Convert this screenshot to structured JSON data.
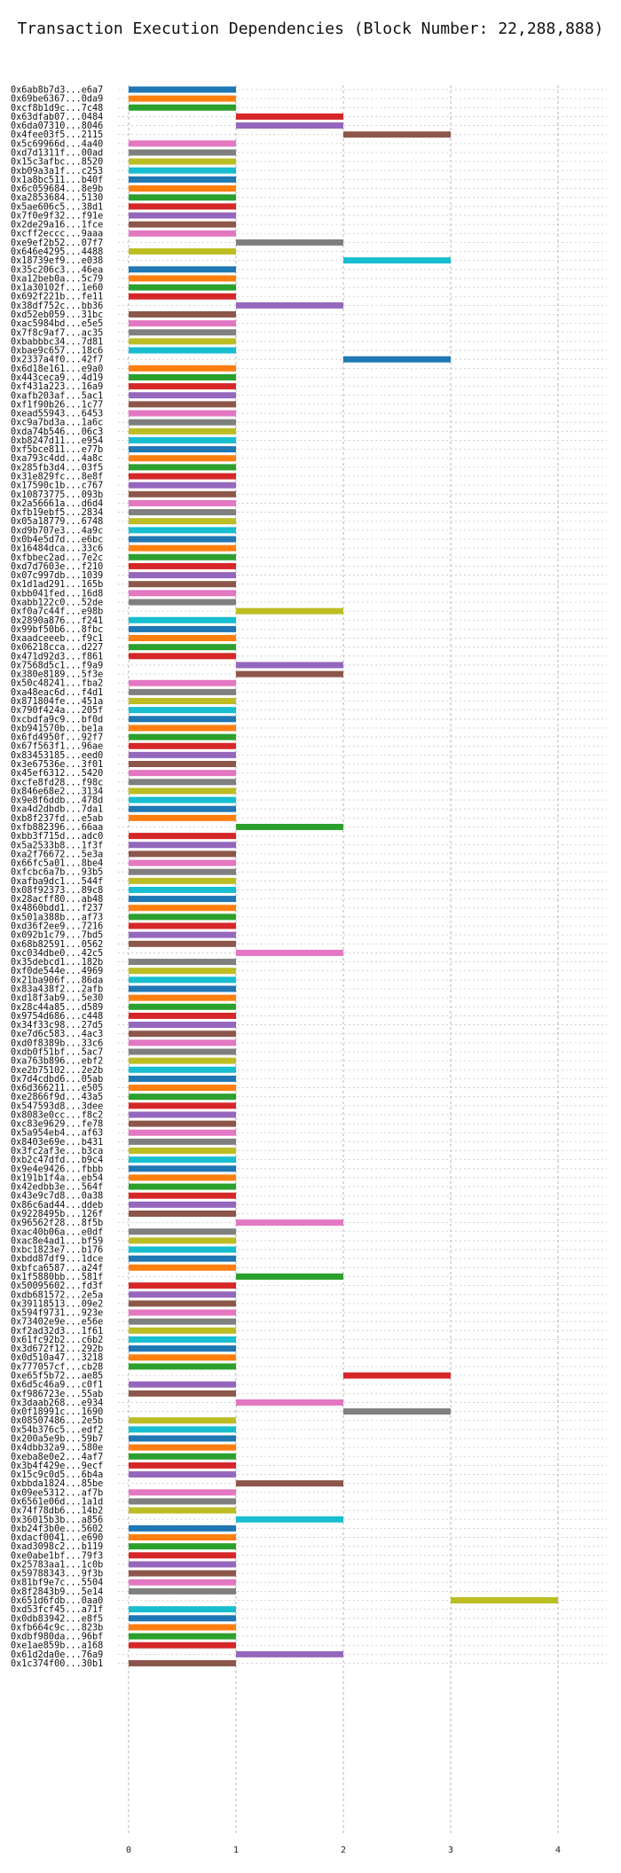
{
  "chart_data": {
    "type": "bar",
    "orientation": "horizontal",
    "title": "Transaction Execution Dependencies (Block Number: 22,288,888)",
    "xlabel": "",
    "ylabel": "",
    "xlim": [
      0,
      4.4
    ],
    "xticks": [
      "0",
      "1",
      "2",
      "3",
      "4"
    ],
    "grid": true,
    "palette": [
      "#1f77b4",
      "#ff7f0e",
      "#2ca02c",
      "#d62728",
      "#9467bd",
      "#8c564b",
      "#e377c2",
      "#7f7f7f",
      "#bcbd22",
      "#17becf"
    ],
    "bars": [
      {
        "tx": "0x6ab8b7d3...e6a7",
        "start": 0,
        "end": 1
      },
      {
        "tx": "0x69be6367...0da9",
        "start": 0,
        "end": 1
      },
      {
        "tx": "0xcf8b1d9c...7c48",
        "start": 0,
        "end": 1
      },
      {
        "tx": "0x63dfab07...0484",
        "start": 1,
        "end": 2
      },
      {
        "tx": "0x6da07310...8046",
        "start": 1,
        "end": 2
      },
      {
        "tx": "0x4fee03f5...2115",
        "start": 2,
        "end": 3
      },
      {
        "tx": "0x5c69966d...4a40",
        "start": 0,
        "end": 1
      },
      {
        "tx": "0xd7d1311f...00ad",
        "start": 0,
        "end": 1
      },
      {
        "tx": "0x15c3afbc...8520",
        "start": 0,
        "end": 1
      },
      {
        "tx": "0xb09a3a1f...c253",
        "start": 0,
        "end": 1
      },
      {
        "tx": "0x1a8bc511...b40f",
        "start": 0,
        "end": 1
      },
      {
        "tx": "0x6c059684...8e9b",
        "start": 0,
        "end": 1
      },
      {
        "tx": "0xa2853684...5130",
        "start": 0,
        "end": 1
      },
      {
        "tx": "0x5ae606c5...38d1",
        "start": 0,
        "end": 1
      },
      {
        "tx": "0x7f0e9f32...f91e",
        "start": 0,
        "end": 1
      },
      {
        "tx": "0x2de29a16...1fce",
        "start": 0,
        "end": 1
      },
      {
        "tx": "0xcff2eccc...9aaa",
        "start": 0,
        "end": 1
      },
      {
        "tx": "0xe9ef2b52...07f7",
        "start": 1,
        "end": 2
      },
      {
        "tx": "0x646e4295...4488",
        "start": 0,
        "end": 1
      },
      {
        "tx": "0x18739ef9...e038",
        "start": 2,
        "end": 3
      },
      {
        "tx": "0x35c206c3...46ea",
        "start": 0,
        "end": 1
      },
      {
        "tx": "0xa12beb0a...5c79",
        "start": 0,
        "end": 1
      },
      {
        "tx": "0x1a30102f...1e60",
        "start": 0,
        "end": 1
      },
      {
        "tx": "0x692f221b...fe11",
        "start": 0,
        "end": 1
      },
      {
        "tx": "0x38df752c...bb36",
        "start": 1,
        "end": 2
      },
      {
        "tx": "0xd52eb059...31bc",
        "start": 0,
        "end": 1
      },
      {
        "tx": "0xac5984bd...e5e5",
        "start": 0,
        "end": 1
      },
      {
        "tx": "0x7f8c9af7...ac35",
        "start": 0,
        "end": 1
      },
      {
        "tx": "0xbabbbc34...7d81",
        "start": 0,
        "end": 1
      },
      {
        "tx": "0xbae9c657...18c6",
        "start": 0,
        "end": 1
      },
      {
        "tx": "0x2337a4f0...42f7",
        "start": 2,
        "end": 3
      },
      {
        "tx": "0x6d18e161...e9a0",
        "start": 0,
        "end": 1
      },
      {
        "tx": "0x443ceca9...4d19",
        "start": 0,
        "end": 1
      },
      {
        "tx": "0xf431a223...16a9",
        "start": 0,
        "end": 1
      },
      {
        "tx": "0xafb203af...5ac1",
        "start": 0,
        "end": 1
      },
      {
        "tx": "0xf1f90b26...1c77",
        "start": 0,
        "end": 1
      },
      {
        "tx": "0xead55943...6453",
        "start": 0,
        "end": 1
      },
      {
        "tx": "0xc9a7bd3a...1a6c",
        "start": 0,
        "end": 1
      },
      {
        "tx": "0xda74b546...06c3",
        "start": 0,
        "end": 1
      },
      {
        "tx": "0xb8247d11...e954",
        "start": 0,
        "end": 1
      },
      {
        "tx": "0xf5bce811...e77b",
        "start": 0,
        "end": 1
      },
      {
        "tx": "0xa793c4dd...4a8c",
        "start": 0,
        "end": 1
      },
      {
        "tx": "0x285fb3d4...03f5",
        "start": 0,
        "end": 1
      },
      {
        "tx": "0x31e829fc...8e8f",
        "start": 0,
        "end": 1
      },
      {
        "tx": "0x17590c1b...c767",
        "start": 0,
        "end": 1
      },
      {
        "tx": "0x10873775...093b",
        "start": 0,
        "end": 1
      },
      {
        "tx": "0x2a56661a...d6d4",
        "start": 0,
        "end": 1
      },
      {
        "tx": "0xfb19ebf5...2834",
        "start": 0,
        "end": 1
      },
      {
        "tx": "0x05a18779...6748",
        "start": 0,
        "end": 1
      },
      {
        "tx": "0xd9b707e3...4a9c",
        "start": 0,
        "end": 1
      },
      {
        "tx": "0x0b4e5d7d...e6bc",
        "start": 0,
        "end": 1
      },
      {
        "tx": "0x16484dca...33c6",
        "start": 0,
        "end": 1
      },
      {
        "tx": "0xfbbec2ad...7e2c",
        "start": 0,
        "end": 1
      },
      {
        "tx": "0xd7d7603e...f210",
        "start": 0,
        "end": 1
      },
      {
        "tx": "0x07c997db...1039",
        "start": 0,
        "end": 1
      },
      {
        "tx": "0x1d1ad291...165b",
        "start": 0,
        "end": 1
      },
      {
        "tx": "0xbb041fed...16d8",
        "start": 0,
        "end": 1
      },
      {
        "tx": "0xabb122c0...52de",
        "start": 0,
        "end": 1
      },
      {
        "tx": "0xf0a7c44f...e98b",
        "start": 1,
        "end": 2
      },
      {
        "tx": "0x2890a876...f241",
        "start": 0,
        "end": 1
      },
      {
        "tx": "0x99bf50b6...8fbc",
        "start": 0,
        "end": 1
      },
      {
        "tx": "0xaadceeeb...f9c1",
        "start": 0,
        "end": 1
      },
      {
        "tx": "0x06218cca...d227",
        "start": 0,
        "end": 1
      },
      {
        "tx": "0x471d92d3...f861",
        "start": 0,
        "end": 1
      },
      {
        "tx": "0x7568d5c1...f9a9",
        "start": 1,
        "end": 2
      },
      {
        "tx": "0x380e8189...5f3e",
        "start": 1,
        "end": 2
      },
      {
        "tx": "0x50c48241...fba2",
        "start": 0,
        "end": 1
      },
      {
        "tx": "0xa48eac6d...f4d1",
        "start": 0,
        "end": 1
      },
      {
        "tx": "0x871804fe...451a",
        "start": 0,
        "end": 1
      },
      {
        "tx": "0x790f424a...205f",
        "start": 0,
        "end": 1
      },
      {
        "tx": "0xcbdfa9c9...bf0d",
        "start": 0,
        "end": 1
      },
      {
        "tx": "0xb941570b...be1a",
        "start": 0,
        "end": 1
      },
      {
        "tx": "0x6fd4950f...92f7",
        "start": 0,
        "end": 1
      },
      {
        "tx": "0x67f563f1...96ae",
        "start": 0,
        "end": 1
      },
      {
        "tx": "0x83453185...eed0",
        "start": 0,
        "end": 1
      },
      {
        "tx": "0x3e67536e...3f01",
        "start": 0,
        "end": 1
      },
      {
        "tx": "0x45ef6312...5420",
        "start": 0,
        "end": 1
      },
      {
        "tx": "0xcfe8fd28...f98c",
        "start": 0,
        "end": 1
      },
      {
        "tx": "0x846e68e2...3134",
        "start": 0,
        "end": 1
      },
      {
        "tx": "0x9e8f6ddb...478d",
        "start": 0,
        "end": 1
      },
      {
        "tx": "0xa4d2dbdb...7da1",
        "start": 0,
        "end": 1
      },
      {
        "tx": "0xb8f237fd...e5ab",
        "start": 0,
        "end": 1
      },
      {
        "tx": "0xfb882396...66aa",
        "start": 1,
        "end": 2
      },
      {
        "tx": "0xbb3f715d...adc0",
        "start": 0,
        "end": 1
      },
      {
        "tx": "0x5a2533b8...1f3f",
        "start": 0,
        "end": 1
      },
      {
        "tx": "0xa2f76672...5e3a",
        "start": 0,
        "end": 1
      },
      {
        "tx": "0x66fc5a01...8be4",
        "start": 0,
        "end": 1
      },
      {
        "tx": "0xfcbc6a7b...93b5",
        "start": 0,
        "end": 1
      },
      {
        "tx": "0xafba9dc1...544f",
        "start": 0,
        "end": 1
      },
      {
        "tx": "0x08f92373...89c8",
        "start": 0,
        "end": 1
      },
      {
        "tx": "0x28acff80...ab48",
        "start": 0,
        "end": 1
      },
      {
        "tx": "0x4860bdd1...f237",
        "start": 0,
        "end": 1
      },
      {
        "tx": "0x501a388b...af73",
        "start": 0,
        "end": 1
      },
      {
        "tx": "0xd36f2ee9...7216",
        "start": 0,
        "end": 1
      },
      {
        "tx": "0x092b1c79...7bd5",
        "start": 0,
        "end": 1
      },
      {
        "tx": "0x68b82591...0562",
        "start": 0,
        "end": 1
      },
      {
        "tx": "0xc034dbe0...42c5",
        "start": 1,
        "end": 2
      },
      {
        "tx": "0x35debcd1...182b",
        "start": 0,
        "end": 1
      },
      {
        "tx": "0xf0de544e...4969",
        "start": 0,
        "end": 1
      },
      {
        "tx": "0x21ba906f...86da",
        "start": 0,
        "end": 1
      },
      {
        "tx": "0x83a438f2...2afb",
        "start": 0,
        "end": 1
      },
      {
        "tx": "0xd18f3ab9...5e30",
        "start": 0,
        "end": 1
      },
      {
        "tx": "0x28c44a85...d589",
        "start": 0,
        "end": 1
      },
      {
        "tx": "0x9754d686...c448",
        "start": 0,
        "end": 1
      },
      {
        "tx": "0x34f33c98...27d5",
        "start": 0,
        "end": 1
      },
      {
        "tx": "0xe7d6c583...4ac3",
        "start": 0,
        "end": 1
      },
      {
        "tx": "0xd0f8389b...33c6",
        "start": 0,
        "end": 1
      },
      {
        "tx": "0xdb0f51bf...5ac7",
        "start": 0,
        "end": 1
      },
      {
        "tx": "0xa763b896...ebf2",
        "start": 0,
        "end": 1
      },
      {
        "tx": "0xe2b75102...2e2b",
        "start": 0,
        "end": 1
      },
      {
        "tx": "0x7d4cdbd6...05ab",
        "start": 0,
        "end": 1
      },
      {
        "tx": "0x6d366211...e505",
        "start": 0,
        "end": 1
      },
      {
        "tx": "0xe2866f9d...43a5",
        "start": 0,
        "end": 1
      },
      {
        "tx": "0x547593d8...3dee",
        "start": 0,
        "end": 1
      },
      {
        "tx": "0x8083e0cc...f8c2",
        "start": 0,
        "end": 1
      },
      {
        "tx": "0xc83e9629...fe78",
        "start": 0,
        "end": 1
      },
      {
        "tx": "0x5a954eb4...af63",
        "start": 0,
        "end": 1
      },
      {
        "tx": "0x8403e69e...b431",
        "start": 0,
        "end": 1
      },
      {
        "tx": "0x3fc2af3e...b3ca",
        "start": 0,
        "end": 1
      },
      {
        "tx": "0xb2c47dfd...b9c4",
        "start": 0,
        "end": 1
      },
      {
        "tx": "0x9e4e9426...fbbb",
        "start": 0,
        "end": 1
      },
      {
        "tx": "0x191b1f4a...eb54",
        "start": 0,
        "end": 1
      },
      {
        "tx": "0x42edbb3e...564f",
        "start": 0,
        "end": 1
      },
      {
        "tx": "0x43e9c7d8...0a38",
        "start": 0,
        "end": 1
      },
      {
        "tx": "0x86c6ad44...ddeb",
        "start": 0,
        "end": 1
      },
      {
        "tx": "0x9228495b...126f",
        "start": 0,
        "end": 1
      },
      {
        "tx": "0x96562f28...8f5b",
        "start": 1,
        "end": 2
      },
      {
        "tx": "0xac40b06a...e0df",
        "start": 0,
        "end": 1
      },
      {
        "tx": "0xac8e4ad1...bf59",
        "start": 0,
        "end": 1
      },
      {
        "tx": "0xbc1823e7...b176",
        "start": 0,
        "end": 1
      },
      {
        "tx": "0xbdd87df9...1dce",
        "start": 0,
        "end": 1
      },
      {
        "tx": "0xbfca6587...a24f",
        "start": 0,
        "end": 1
      },
      {
        "tx": "0x1f5880bb...581f",
        "start": 1,
        "end": 2
      },
      {
        "tx": "0x50095602...fd3f",
        "start": 0,
        "end": 1
      },
      {
        "tx": "0xdb681572...2e5a",
        "start": 0,
        "end": 1
      },
      {
        "tx": "0x39118513...09e2",
        "start": 0,
        "end": 1
      },
      {
        "tx": "0x594f9731...923e",
        "start": 0,
        "end": 1
      },
      {
        "tx": "0x73402e9e...e56e",
        "start": 0,
        "end": 1
      },
      {
        "tx": "0xf2ad32d3...1f61",
        "start": 0,
        "end": 1
      },
      {
        "tx": "0x61fc92b2...c6b2",
        "start": 0,
        "end": 1
      },
      {
        "tx": "0x3d672f12...292b",
        "start": 0,
        "end": 1
      },
      {
        "tx": "0x0d510a47...3218",
        "start": 0,
        "end": 1
      },
      {
        "tx": "0x777057cf...cb28",
        "start": 0,
        "end": 1
      },
      {
        "tx": "0xe65f5b72...ae85",
        "start": 2,
        "end": 3
      },
      {
        "tx": "0x6d5c46a9...c0f1",
        "start": 0,
        "end": 1
      },
      {
        "tx": "0xf986723e...55ab",
        "start": 0,
        "end": 1
      },
      {
        "tx": "0x3daab268...e934",
        "start": 1,
        "end": 2
      },
      {
        "tx": "0x0f18991c...1690",
        "start": 2,
        "end": 3
      },
      {
        "tx": "0x08507486...2e5b",
        "start": 0,
        "end": 1
      },
      {
        "tx": "0x54b376c5...edf2",
        "start": 0,
        "end": 1
      },
      {
        "tx": "0x200a5e9b...59b7",
        "start": 0,
        "end": 1
      },
      {
        "tx": "0x4dbb32a9...580e",
        "start": 0,
        "end": 1
      },
      {
        "tx": "0xeba8e0e2...4af7",
        "start": 0,
        "end": 1
      },
      {
        "tx": "0x3b4f429e...9ecf",
        "start": 0,
        "end": 1
      },
      {
        "tx": "0x15c9c0d5...6b4a",
        "start": 0,
        "end": 1
      },
      {
        "tx": "0xbbda1824...85be",
        "start": 1,
        "end": 2
      },
      {
        "tx": "0x09ee5312...af7b",
        "start": 0,
        "end": 1
      },
      {
        "tx": "0x6561e06d...1a1d",
        "start": 0,
        "end": 1
      },
      {
        "tx": "0x74f78db6...14b2",
        "start": 0,
        "end": 1
      },
      {
        "tx": "0x36015b3b...a856",
        "start": 1,
        "end": 2
      },
      {
        "tx": "0xb24f3b0e...5602",
        "start": 0,
        "end": 1
      },
      {
        "tx": "0xdacf0041...e690",
        "start": 0,
        "end": 1
      },
      {
        "tx": "0xad3098c2...b119",
        "start": 0,
        "end": 1
      },
      {
        "tx": "0xe0abe1bf...79f3",
        "start": 0,
        "end": 1
      },
      {
        "tx": "0x25783aa1...1c0b",
        "start": 0,
        "end": 1
      },
      {
        "tx": "0x59788343...9f3b",
        "start": 0,
        "end": 1
      },
      {
        "tx": "0x81bf9e7c...5504",
        "start": 0,
        "end": 1
      },
      {
        "tx": "0x8f2843b9...5e14",
        "start": 0,
        "end": 1
      },
      {
        "tx": "0x651d6fdb...0aa0",
        "start": 3,
        "end": 4
      },
      {
        "tx": "0xd53fcf45...a71f",
        "start": 0,
        "end": 1
      },
      {
        "tx": "0x0db83942...e8f5",
        "start": 0,
        "end": 1
      },
      {
        "tx": "0xfb664c9c...823b",
        "start": 0,
        "end": 1
      },
      {
        "tx": "0xdbf980da...96bf",
        "start": 0,
        "end": 1
      },
      {
        "tx": "0xe1ae859b...a168",
        "start": 0,
        "end": 1
      },
      {
        "tx": "0x61d2da0e...76a9",
        "start": 1,
        "end": 2
      },
      {
        "tx": "0x1c374f00...30b1",
        "start": 0,
        "end": 1
      }
    ]
  }
}
